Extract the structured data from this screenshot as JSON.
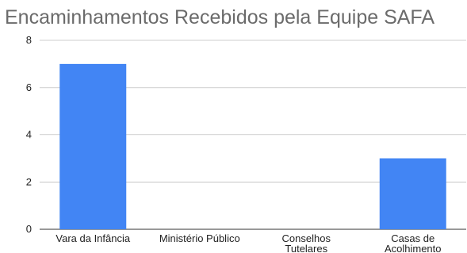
{
  "chart_data": {
    "type": "bar",
    "title": "Encaminhamentos Recebidos pela Equipe SAFA",
    "categories": [
      [
        "Vara da Infância"
      ],
      [
        "Ministério Público"
      ],
      [
        "Conselhos",
        "Tutelares"
      ],
      [
        "Casas de",
        "Acolhimento"
      ]
    ],
    "values": [
      7,
      0,
      0,
      3
    ],
    "ylim": [
      0,
      8
    ],
    "yticks": [
      0,
      2,
      4,
      6,
      8
    ],
    "grid": true,
    "bar_color": "#4285f4"
  }
}
